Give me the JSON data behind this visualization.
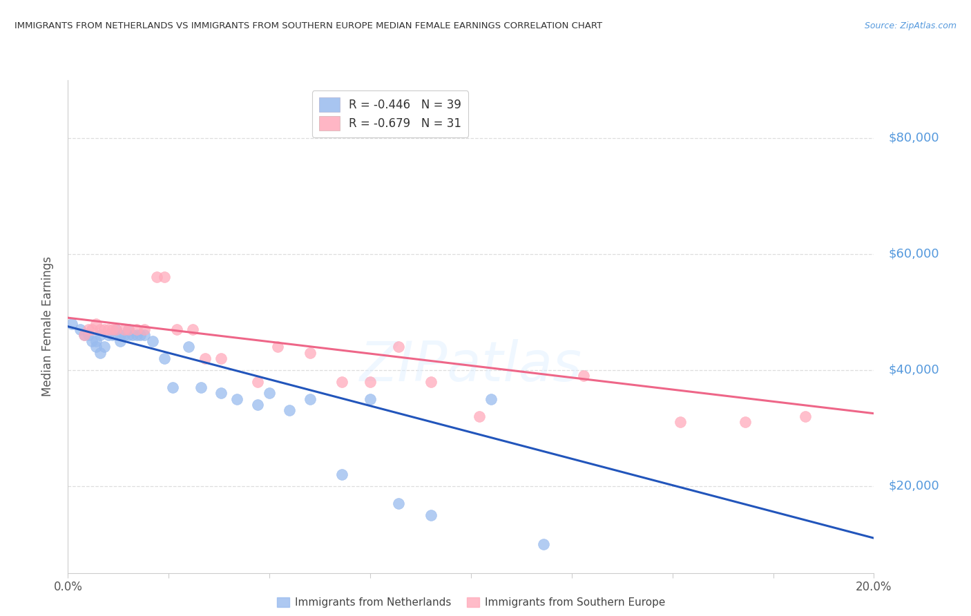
{
  "title": "IMMIGRANTS FROM NETHERLANDS VS IMMIGRANTS FROM SOUTHERN EUROPE MEDIAN FEMALE EARNINGS CORRELATION CHART",
  "source": "Source: ZipAtlas.com",
  "ylabel": "Median Female Earnings",
  "ytick_labels": [
    "$20,000",
    "$40,000",
    "$60,000",
    "$80,000"
  ],
  "ytick_values": [
    20000,
    40000,
    60000,
    80000
  ],
  "xlim": [
    0.0,
    0.2
  ],
  "ylim": [
    5000,
    90000
  ],
  "legend_r1": "R = -0.446",
  "legend_n1": "N = 39",
  "legend_r2": "R = -0.679",
  "legend_n2": "N = 31",
  "blue_color": "#99BBEE",
  "pink_color": "#FFAABB",
  "line_blue": "#2255BB",
  "line_pink": "#EE6688",
  "title_color": "#333333",
  "axis_label_color": "#555555",
  "ytick_color": "#5599DD",
  "watermark": "ZIPatlas",
  "blue_scatter_x": [
    0.001,
    0.003,
    0.004,
    0.005,
    0.006,
    0.007,
    0.007,
    0.008,
    0.008,
    0.009,
    0.01,
    0.011,
    0.012,
    0.013,
    0.013,
    0.014,
    0.015,
    0.015,
    0.016,
    0.017,
    0.018,
    0.019,
    0.021,
    0.024,
    0.026,
    0.03,
    0.033,
    0.038,
    0.042,
    0.047,
    0.05,
    0.055,
    0.06,
    0.068,
    0.075,
    0.082,
    0.09,
    0.105,
    0.118
  ],
  "blue_scatter_y": [
    48000,
    47000,
    46000,
    46000,
    45000,
    45000,
    44000,
    46000,
    43000,
    44000,
    46000,
    46000,
    47000,
    45000,
    46000,
    46000,
    46000,
    47000,
    46000,
    46000,
    46000,
    46000,
    45000,
    42000,
    37000,
    44000,
    37000,
    36000,
    35000,
    34000,
    36000,
    33000,
    35000,
    22000,
    35000,
    17000,
    15000,
    35000,
    10000
  ],
  "pink_scatter_x": [
    0.004,
    0.005,
    0.006,
    0.007,
    0.008,
    0.009,
    0.01,
    0.011,
    0.012,
    0.014,
    0.015,
    0.017,
    0.019,
    0.022,
    0.024,
    0.027,
    0.031,
    0.034,
    0.038,
    0.047,
    0.052,
    0.06,
    0.068,
    0.075,
    0.082,
    0.09,
    0.102,
    0.128,
    0.152,
    0.168,
    0.183
  ],
  "pink_scatter_y": [
    46000,
    47000,
    47000,
    48000,
    47000,
    47000,
    47000,
    47000,
    47000,
    47000,
    47000,
    47000,
    47000,
    56000,
    56000,
    47000,
    47000,
    42000,
    42000,
    38000,
    44000,
    43000,
    38000,
    38000,
    44000,
    38000,
    32000,
    39000,
    31000,
    31000,
    32000
  ],
  "blue_line_x": [
    0.0,
    0.2
  ],
  "blue_line_y": [
    47500,
    11000
  ],
  "pink_line_x": [
    0.0,
    0.2
  ],
  "pink_line_y": [
    49000,
    32500
  ],
  "marker_size": 130,
  "xtick_positions": [
    0.0,
    0.025,
    0.05,
    0.075,
    0.1,
    0.125,
    0.15,
    0.175,
    0.2
  ],
  "xtick_labels": [
    "0.0%",
    "",
    "",
    "",
    "",
    "",
    "",
    "",
    "20.0%"
  ],
  "grid_color": "#DDDDDD",
  "spine_color": "#CCCCCC"
}
